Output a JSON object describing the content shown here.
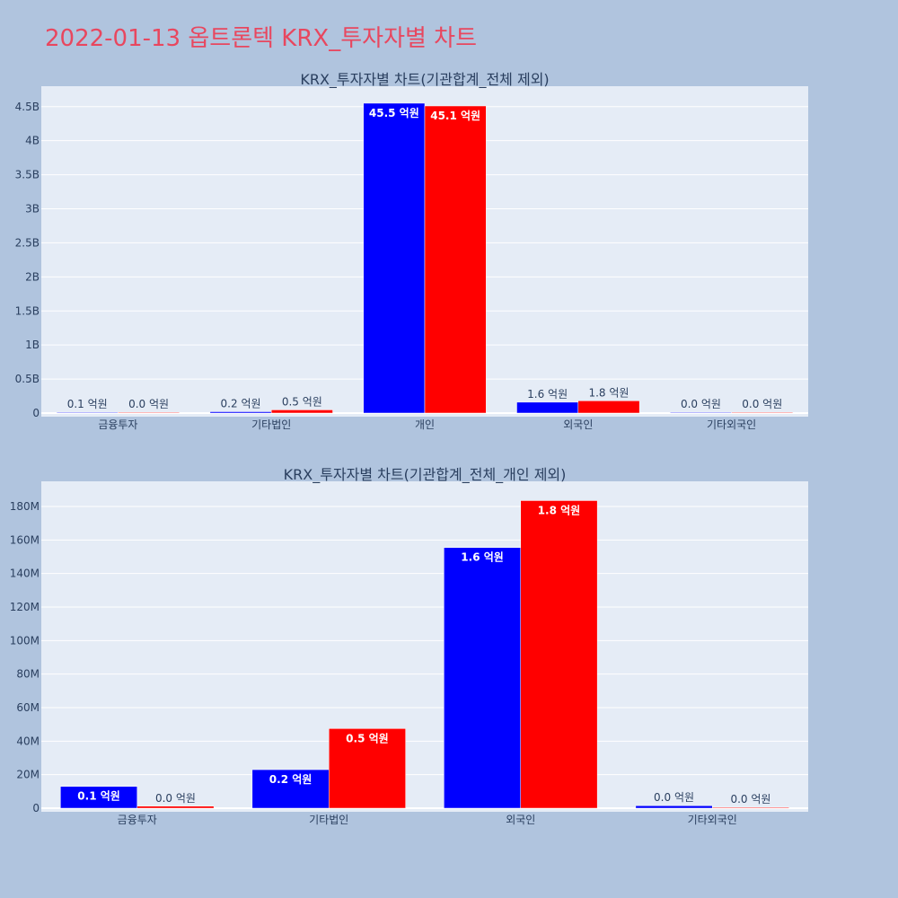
{
  "title": "2022-01-13 옵트론텍 KRX_투자자별 차트",
  "colors": {
    "buy": "#0000ff",
    "sell": "#ff0000",
    "plot_bg": "#e5ecf6",
    "page_bg": "#b0c4de",
    "title": "#e8475f"
  },
  "chart_data": [
    {
      "type": "bar",
      "title": "KRX_투자자별 차트(기관합계_전체 제외)",
      "categories": [
        "금융투자",
        "기타법인",
        "개인",
        "외국인",
        "기타외국인"
      ],
      "series": [
        {
          "values": [
            10000000,
            20000000,
            4550000000,
            160000000,
            1000000
          ],
          "labels": [
            "0.1 억원",
            "0.2 억원",
            "45.5 억원",
            "1.6 억원",
            "0.0 억원"
          ]
        },
        {
          "values": [
            1000000,
            47000000,
            4510000000,
            180000000,
            500000
          ],
          "labels": [
            "0.0 억원",
            "0.5 억원",
            "45.1 억원",
            "1.8 억원",
            "0.0 억원"
          ]
        }
      ],
      "ylim": [
        0,
        4800000000
      ],
      "yticks": [
        0,
        500000000,
        1000000000,
        1500000000,
        2000000000,
        2500000000,
        3000000000,
        3500000000,
        4000000000,
        4500000000
      ],
      "ytick_labels": [
        "0",
        "0.5B",
        "1B",
        "1.5B",
        "2B",
        "2.5B",
        "3B",
        "3.5B",
        "4B",
        "4.5B"
      ],
      "grid": true
    },
    {
      "type": "bar",
      "title": "KRX_투자자별 차트(기관합계_전체_개인 제외)",
      "categories": [
        "금융투자",
        "기타법인",
        "외국인",
        "기타외국인"
      ],
      "series": [
        {
          "values": [
            13000000,
            23000000,
            155500000,
            1500000
          ],
          "labels": [
            "0.1 억원",
            "0.2 억원",
            "1.6 억원",
            "0.0 억원"
          ]
        },
        {
          "values": [
            1200000,
            47500000,
            183500000,
            500000
          ],
          "labels": [
            "0.0 억원",
            "0.5 억원",
            "1.8 억원",
            "0.0 억원"
          ]
        }
      ],
      "ylim": [
        0,
        195000000
      ],
      "yticks": [
        0,
        20000000,
        40000000,
        60000000,
        80000000,
        100000000,
        120000000,
        140000000,
        160000000,
        180000000
      ],
      "ytick_labels": [
        "0",
        "20M",
        "40M",
        "60M",
        "80M",
        "100M",
        "120M",
        "140M",
        "160M",
        "180M"
      ],
      "grid": true
    }
  ]
}
